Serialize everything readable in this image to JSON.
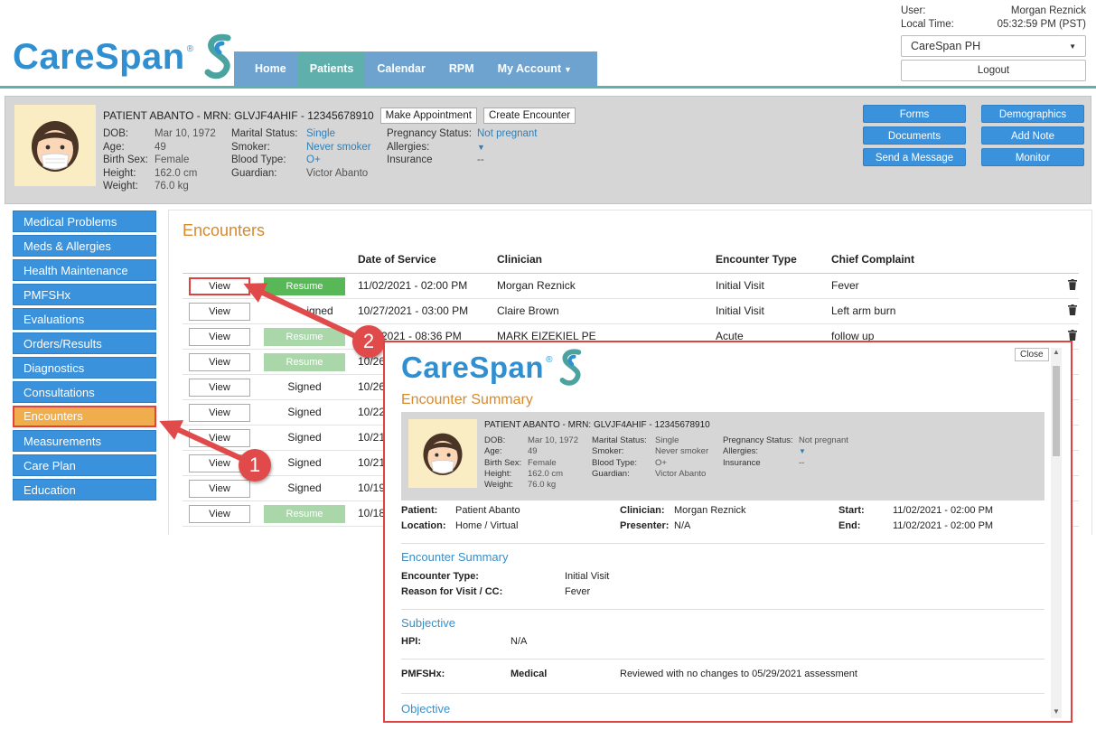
{
  "app": {
    "brand": "CareSpan",
    "brand_mark": "®",
    "colors": {
      "primary": "#3a91dc",
      "teal": "#5fb0ad",
      "accent_orange": "#d68a2e",
      "callout_red": "#e04242",
      "resume_green": "#58b858"
    }
  },
  "nav": {
    "tabs": [
      "Home",
      "Patients",
      "Calendar",
      "RPM",
      "My Account"
    ],
    "active": "Patients"
  },
  "user": {
    "user_label": "User:",
    "user_name": "Morgan Reznick",
    "time_label": "Local Time:",
    "time_value": "05:32:59 PM (PST)",
    "org": "CareSpan PH",
    "logout": "Logout"
  },
  "patient": {
    "title": "PATIENT ABANTO - MRN: GLVJF4AHIF - 12345678910",
    "make_appointment": "Make Appointment",
    "create_encounter": "Create Encounter",
    "labels": {
      "dob": "DOB:",
      "age": "Age:",
      "birth_sex": "Birth Sex:",
      "height": "Height:",
      "weight": "Weight:",
      "marital": "Marital Status:",
      "smoker": "Smoker:",
      "blood": "Blood Type:",
      "guardian": "Guardian:",
      "pregnancy": "Pregnancy Status:",
      "allergies": "Allergies:",
      "insurance": "Insurance"
    },
    "dob": "Mar 10, 1972",
    "age": "49",
    "birth_sex": "Female",
    "height": "162.0 cm",
    "weight": "76.0 kg",
    "marital": "Single",
    "smoker": "Never smoker",
    "blood": "O+",
    "guardian": "Victor Abanto",
    "pregnancy": "Not pregnant",
    "allergies_icon": "caret-down-icon",
    "insurance": "--"
  },
  "banner_buttons": [
    "Forms",
    "Demographics",
    "Documents",
    "Add Note",
    "Send a Message",
    "Monitor"
  ],
  "sidebar": {
    "items": [
      "Medical Problems",
      "Meds & Allergies",
      "Health Maintenance",
      "PMFSHx",
      "Evaluations",
      "Orders/Results",
      "Diagnostics",
      "Consultations",
      "Encounters",
      "Measurements",
      "Care Plan",
      "Education"
    ],
    "active": "Encounters"
  },
  "encounters": {
    "title": "Encounters",
    "headers": {
      "date": "Date of Service",
      "clinician": "Clinician",
      "type": "Encounter Type",
      "complaint": "Chief Complaint"
    },
    "view_label": "View",
    "resume_label": "Resume",
    "signed_label": "Signed",
    "rows": [
      {
        "status": "Resume",
        "date": "11/02/2021 - 02:00 PM",
        "clinician": "Morgan Reznick",
        "type": "Initial Visit",
        "complaint": "Fever"
      },
      {
        "status": "Signed",
        "status_text": "igned",
        "date": "10/27/2021 - 03:00 PM",
        "clinician": "Claire Brown",
        "type": "Initial Visit",
        "complaint": "Left arm burn"
      },
      {
        "status": "Resume-disabled",
        "date": "2021 - 08:36 PM",
        "clinician": "MARK EIZEKIEL PE",
        "type": "Acute",
        "complaint": "follow up"
      },
      {
        "status": "Resume-disabled",
        "date": "10/26"
      },
      {
        "status": "Signed",
        "date": "10/26"
      },
      {
        "status": "Signed",
        "date": "10/22"
      },
      {
        "status": "Signed",
        "date": "10/21"
      },
      {
        "status": "Signed",
        "date": "10/21"
      },
      {
        "status": "Signed",
        "date": "10/19"
      },
      {
        "status": "Resume-disabled",
        "date": "10/18"
      }
    ]
  },
  "callouts": [
    "1",
    "2"
  ],
  "modal": {
    "close": "Close",
    "title": "Encounter Summary",
    "patient_title": "PATIENT ABANTO - MRN: GLVJF4AHIF - 12345678910",
    "meta": {
      "patient_label": "Patient:",
      "patient": "Patient Abanto",
      "location_label": "Location:",
      "location": "Home / Virtual",
      "clinician_label": "Clinician:",
      "clinician": "Morgan Reznick",
      "presenter_label": "Presenter:",
      "presenter": "N/A",
      "start_label": "Start:",
      "start": "11/02/2021 - 02:00 PM",
      "end_label": "End:",
      "end": "11/02/2021 - 02:00 PM"
    },
    "summary": {
      "heading": "Encounter Summary",
      "type_label": "Encounter Type:",
      "type": "Initial Visit",
      "reason_label": "Reason for Visit / CC:",
      "reason": "Fever"
    },
    "subjective": {
      "heading": "Subjective",
      "hpi_label": "HPI:",
      "hpi": "N/A",
      "pmfshx_label": "PMFSHx:",
      "pmfshx_cat": "Medical",
      "pmfshx_value": "Reviewed with no changes to 05/29/2021 assessment"
    },
    "objective": {
      "heading": "Objective"
    }
  }
}
